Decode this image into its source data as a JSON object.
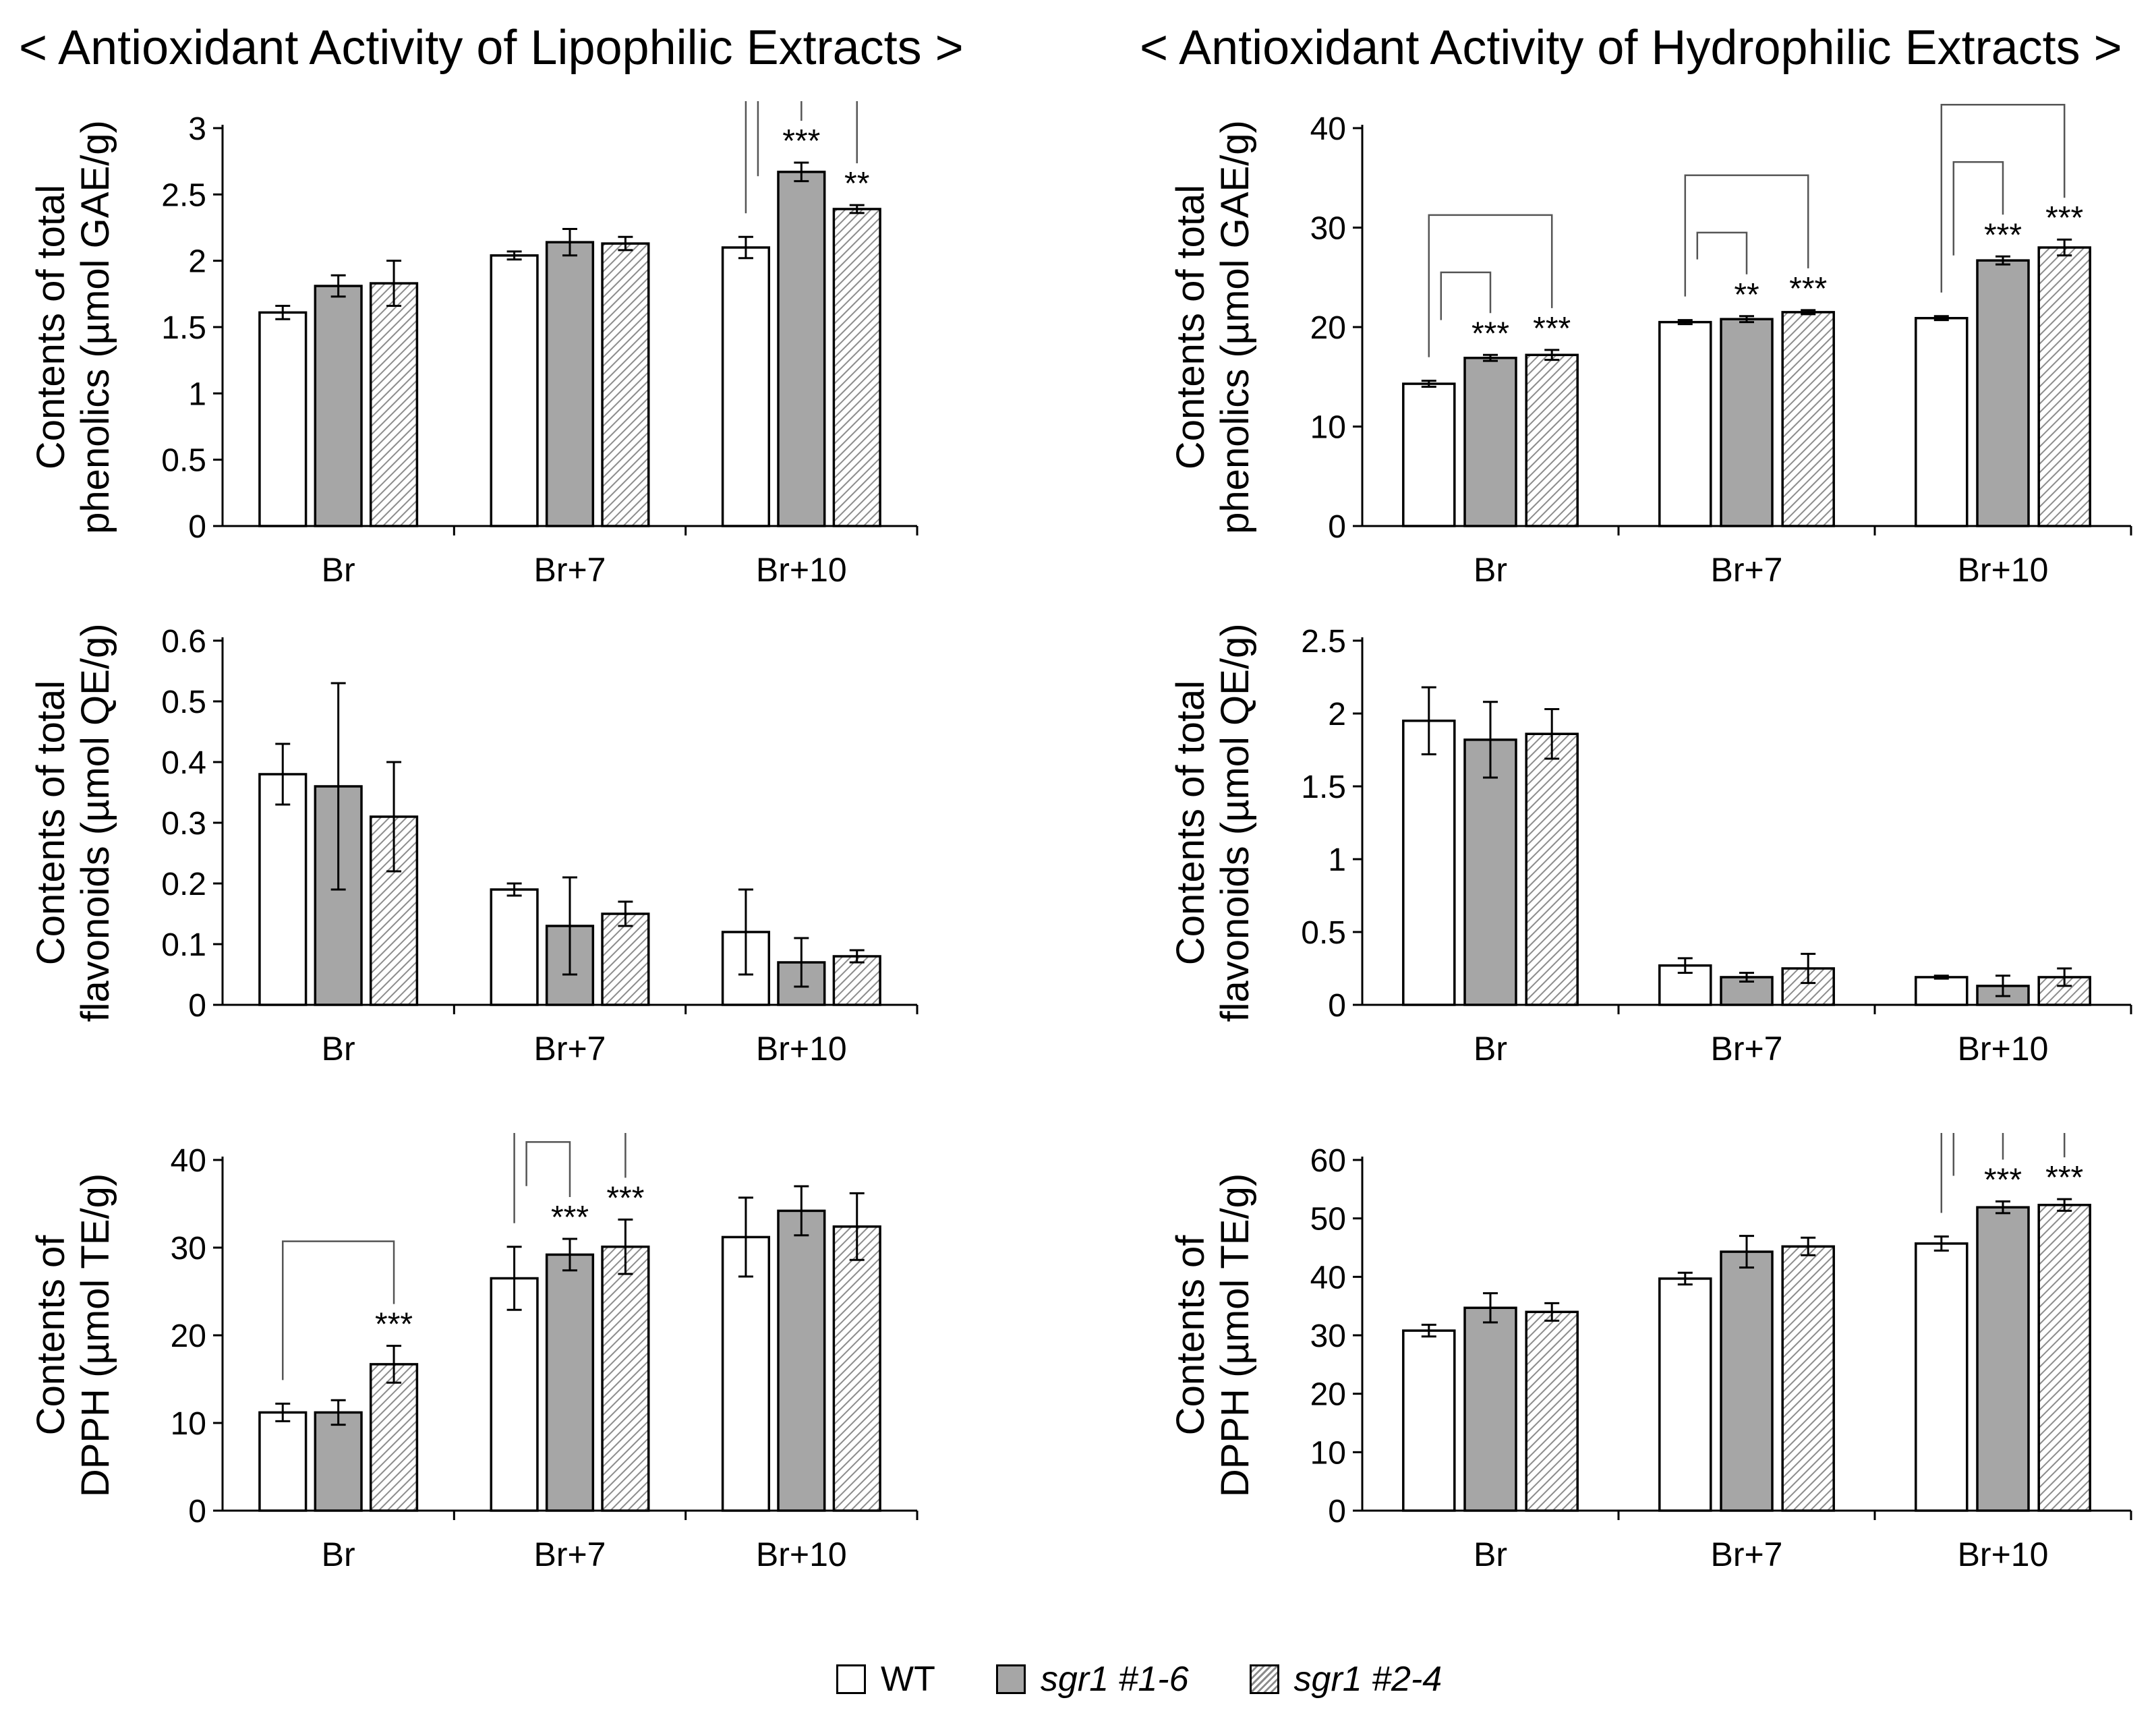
{
  "titles": {
    "left": "< Antioxidant Activity of Lipophilic Extracts >",
    "right": "< Antioxidant Activity of Hydrophilic Extracts >"
  },
  "colors": {
    "wt": "#ffffff",
    "sgr1_16": "#a6a6a6",
    "sgr1_24_hatch": "#8c8c8c",
    "axis": "#000000"
  },
  "legend": [
    {
      "label": "WT",
      "style": "white",
      "italic": false
    },
    {
      "label": "sgr1 #1-6",
      "style": "gray",
      "italic": true
    },
    {
      "label": "sgr1 #2-4",
      "style": "hatch",
      "italic": true
    }
  ],
  "chart_data": [
    {
      "id": "lipo-phenolics",
      "type": "bar",
      "title": "Antioxidant Activity of Lipophilic Extracts",
      "ylabel_lines": [
        "Contents of  total",
        "phenolics (µmol GAE/g)"
      ],
      "categories": [
        "Br",
        "Br+7",
        "Br+10"
      ],
      "ylim": [
        0,
        3
      ],
      "yticks": [
        0,
        0.5,
        1,
        1.5,
        2,
        2.5,
        3
      ],
      "ytick_labels": [
        "0",
        "0.5",
        "1",
        "1.5",
        "2",
        "2.5",
        "3"
      ],
      "series": [
        {
          "name": "WT",
          "values": [
            1.61,
            2.04,
            2.1
          ],
          "errors": [
            0.05,
            0.03,
            0.08
          ]
        },
        {
          "name": "sgr1 #1-6",
          "values": [
            1.81,
            2.14,
            2.67
          ],
          "errors": [
            0.08,
            0.1,
            0.07
          ]
        },
        {
          "name": "sgr1 #2-4",
          "values": [
            1.83,
            2.13,
            2.39
          ],
          "errors": [
            0.17,
            0.05,
            0.03
          ]
        }
      ],
      "significance": [
        {
          "category": 2,
          "series": 1,
          "label": "***"
        },
        {
          "category": 2,
          "series": 2,
          "label": "**"
        }
      ]
    },
    {
      "id": "hydro-phenolics",
      "type": "bar",
      "title": "Antioxidant Activity of Hydrophilic Extracts",
      "ylabel_lines": [
        "Contents of  total",
        "phenolics (µmol GAE/g)"
      ],
      "categories": [
        "Br",
        "Br+7",
        "Br+10"
      ],
      "ylim": [
        0,
        40
      ],
      "yticks": [
        0,
        10,
        20,
        30,
        40
      ],
      "ytick_labels": [
        "0",
        "10",
        "20",
        "30",
        "40"
      ],
      "series": [
        {
          "name": "WT",
          "values": [
            14.3,
            20.5,
            20.9
          ],
          "errors": [
            0.3,
            0.2,
            0.2
          ]
        },
        {
          "name": "sgr1 #1-6",
          "values": [
            16.9,
            20.8,
            26.7
          ],
          "errors": [
            0.3,
            0.3,
            0.4
          ]
        },
        {
          "name": "sgr1 #2-4",
          "values": [
            17.2,
            21.5,
            28.0
          ],
          "errors": [
            0.5,
            0.2,
            0.8
          ]
        }
      ],
      "significance": [
        {
          "category": 0,
          "series": 1,
          "label": "***"
        },
        {
          "category": 0,
          "series": 2,
          "label": "***"
        },
        {
          "category": 1,
          "series": 1,
          "label": "**"
        },
        {
          "category": 1,
          "series": 2,
          "label": "***"
        },
        {
          "category": 2,
          "series": 1,
          "label": "***"
        },
        {
          "category": 2,
          "series": 2,
          "label": "***"
        }
      ]
    },
    {
      "id": "lipo-flavonoids",
      "type": "bar",
      "title": "Antioxidant Activity of Lipophilic Extracts",
      "ylabel_lines": [
        "Contents of total",
        "flavonoids (µmol QE/g)"
      ],
      "categories": [
        "Br",
        "Br+7",
        "Br+10"
      ],
      "ylim": [
        0,
        0.6
      ],
      "yticks": [
        0,
        0.1,
        0.2,
        0.3,
        0.4,
        0.5,
        0.6
      ],
      "ytick_labels": [
        "0",
        "0.1",
        "0.2",
        "0.3",
        "0.4",
        "0.5",
        "0.6"
      ],
      "series": [
        {
          "name": "WT",
          "values": [
            0.38,
            0.19,
            0.12
          ],
          "errors": [
            0.05,
            0.01,
            0.07
          ]
        },
        {
          "name": "sgr1 #1-6",
          "values": [
            0.36,
            0.13,
            0.07
          ],
          "errors": [
            0.17,
            0.08,
            0.04
          ]
        },
        {
          "name": "sgr1 #2-4",
          "values": [
            0.31,
            0.15,
            0.08
          ],
          "errors": [
            0.09,
            0.02,
            0.01
          ]
        }
      ],
      "significance": []
    },
    {
      "id": "hydro-flavonoids",
      "type": "bar",
      "title": "Antioxidant Activity of Hydrophilic Extracts",
      "ylabel_lines": [
        "Contents of total",
        "flavonoids (µmol QE/g)"
      ],
      "categories": [
        "Br",
        "Br+7",
        "Br+10"
      ],
      "ylim": [
        0,
        2.5
      ],
      "yticks": [
        0,
        0.5,
        1,
        1.5,
        2,
        2.5
      ],
      "ytick_labels": [
        "0",
        "0.5",
        "1",
        "1.5",
        "2",
        "2.5"
      ],
      "series": [
        {
          "name": "WT",
          "values": [
            1.95,
            0.27,
            0.19
          ],
          "errors": [
            0.23,
            0.05,
            0.01
          ]
        },
        {
          "name": "sgr1 #1-6",
          "values": [
            1.82,
            0.19,
            0.13
          ],
          "errors": [
            0.26,
            0.03,
            0.07
          ]
        },
        {
          "name": "sgr1 #2-4",
          "values": [
            1.86,
            0.25,
            0.19
          ],
          "errors": [
            0.17,
            0.1,
            0.06
          ]
        }
      ],
      "significance": []
    },
    {
      "id": "lipo-dpph",
      "type": "bar",
      "title": "Antioxidant Activity of Lipophilic Extracts",
      "ylabel_lines": [
        "Contents of",
        "DPPH (µmol TE/g)"
      ],
      "categories": [
        "Br",
        "Br+7",
        "Br+10"
      ],
      "ylim": [
        0,
        40
      ],
      "yticks": [
        0,
        10,
        20,
        30,
        40
      ],
      "ytick_labels": [
        "0",
        "10",
        "20",
        "30",
        "40"
      ],
      "series": [
        {
          "name": "WT",
          "values": [
            11.2,
            26.5,
            31.2
          ],
          "errors": [
            1.0,
            3.6,
            4.5
          ]
        },
        {
          "name": "sgr1 #1-6",
          "values": [
            11.2,
            29.2,
            34.2
          ],
          "errors": [
            1.4,
            1.8,
            2.8
          ]
        },
        {
          "name": "sgr1 #2-4",
          "values": [
            16.7,
            30.1,
            32.4
          ],
          "errors": [
            2.1,
            3.1,
            3.8
          ]
        }
      ],
      "significance": [
        {
          "category": 0,
          "series": 2,
          "label": "***"
        },
        {
          "category": 1,
          "series": 1,
          "label": "***"
        },
        {
          "category": 1,
          "series": 2,
          "label": "***"
        }
      ]
    },
    {
      "id": "hydro-dpph",
      "type": "bar",
      "title": "Antioxidant Activity of Hydrophilic Extracts",
      "ylabel_lines": [
        "Contents of",
        "DPPH (µmol TE/g)"
      ],
      "categories": [
        "Br",
        "Br+7",
        "Br+10"
      ],
      "ylim": [
        0,
        60
      ],
      "yticks": [
        0,
        10,
        20,
        30,
        40,
        50,
        60
      ],
      "ytick_labels": [
        "0",
        "10",
        "20",
        "30",
        "40",
        "50",
        "60"
      ],
      "series": [
        {
          "name": "WT",
          "values": [
            30.8,
            39.7,
            45.7
          ],
          "errors": [
            1.0,
            1.0,
            1.2
          ]
        },
        {
          "name": "sgr1 #1-6",
          "values": [
            34.7,
            44.3,
            51.9
          ],
          "errors": [
            2.5,
            2.7,
            1.0
          ]
        },
        {
          "name": "sgr1 #2-4",
          "values": [
            34.0,
            45.2,
            52.3
          ],
          "errors": [
            1.5,
            1.5,
            1.0
          ]
        }
      ],
      "significance": [
        {
          "category": 2,
          "series": 1,
          "label": "***"
        },
        {
          "category": 2,
          "series": 2,
          "label": "***"
        }
      ]
    }
  ]
}
